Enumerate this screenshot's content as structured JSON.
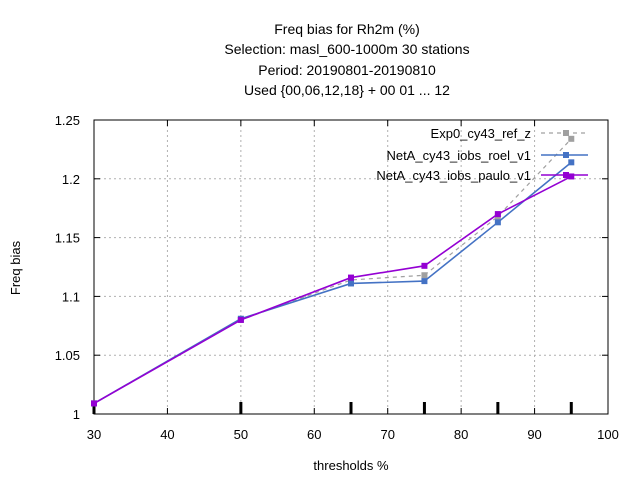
{
  "chart_data": {
    "type": "line",
    "title_lines": [
      "Freq bias  for Rh2m (%)",
      "Selection: masl_600-1000m     30 stations",
      "Period: 20190801-20190810",
      "Used {00,06,12,18} + 00 01 ... 12"
    ],
    "xlabel": "thresholds %",
    "ylabel": "Freq bias",
    "xlim": [
      30,
      100
    ],
    "ylim": [
      1,
      1.25
    ],
    "x_ticks": [
      "30",
      "40",
      "50",
      "60",
      "70",
      "80",
      "90",
      "100"
    ],
    "y_ticks": [
      "1",
      "1.05",
      "1.1",
      "1.15",
      "1.2",
      "1.25"
    ],
    "grid": true,
    "legend_position": "top-right",
    "x": [
      30,
      50,
      65,
      75,
      85,
      95
    ],
    "series": [
      {
        "name": "Exp0_cy43_ref_z",
        "color": "#a0a0a0",
        "dashed": true,
        "values": [
          1.009,
          1.08,
          1.114,
          1.118,
          1.168,
          1.234
        ]
      },
      {
        "name": "NetA_cy43_iobs_roel_v1",
        "color": "#4472c4",
        "dashed": false,
        "values": [
          1.009,
          1.081,
          1.111,
          1.113,
          1.163,
          1.214
        ]
      },
      {
        "name": "NetA_cy43_iobs_paulo_v1",
        "color": "#9400d3",
        "dashed": false,
        "values": [
          1.009,
          1.08,
          1.116,
          1.126,
          1.17,
          1.202
        ]
      }
    ]
  }
}
